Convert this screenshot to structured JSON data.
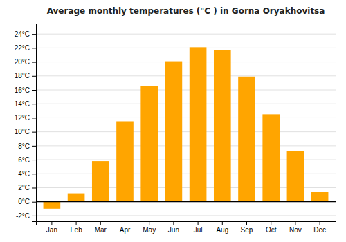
{
  "chart_data": {
    "type": "bar",
    "title": "Average monthly temperatures (°C ) in Gorna Oryakhovitsa",
    "categories": [
      "Jan",
      "Feb",
      "Mar",
      "Apr",
      "May",
      "Jun",
      "Jul",
      "Aug",
      "Sep",
      "Oct",
      "Nov",
      "Dec"
    ],
    "values": [
      -1.0,
      1.2,
      5.8,
      11.5,
      16.5,
      20.1,
      22.1,
      21.7,
      17.9,
      12.5,
      7.2,
      1.4
    ],
    "color": "#FFA500",
    "ylim": [
      -2.8,
      25.5
    ],
    "yticks": [
      {
        "value": -2,
        "label": "-2°C"
      },
      {
        "value": 0,
        "label": "0°C"
      },
      {
        "value": 2,
        "label": "2°C"
      },
      {
        "value": 4,
        "label": "4°C"
      },
      {
        "value": 6,
        "label": "6°C"
      },
      {
        "value": 8,
        "label": "8°C"
      },
      {
        "value": 10,
        "label": "10°C"
      },
      {
        "value": 12,
        "label": "12°C"
      },
      {
        "value": 14,
        "label": "14°C"
      },
      {
        "value": 16,
        "label": "16°C"
      },
      {
        "value": 18,
        "label": "18°C"
      },
      {
        "value": 20,
        "label": "20°C"
      },
      {
        "value": 22,
        "label": "22°C"
      },
      {
        "value": 24,
        "label": "24°C"
      }
    ],
    "grid": true
  }
}
